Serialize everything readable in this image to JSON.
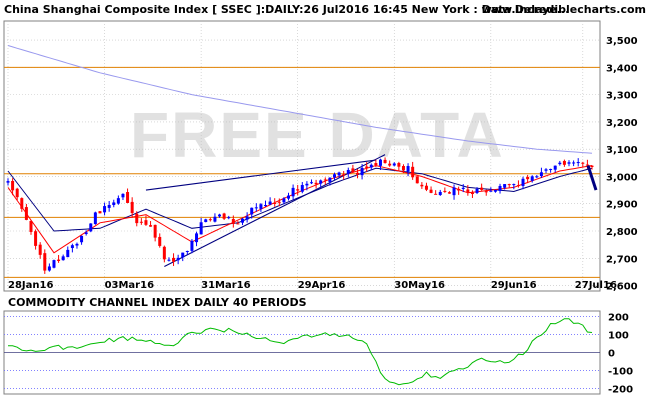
{
  "header": {
    "title": "China Shanghai Composite Index [ SSEC ]:DAILY:26 Jul2016 16:45 New York : Data Delaye...",
    "site": "www.incrediblecharts.com"
  },
  "watermark": "FREE DATA",
  "colors": {
    "price_up": "#0000ff",
    "price_down": "#ff0000",
    "ma_short": "#ff0000",
    "ma_medium": "#000080",
    "ma_long": "#9999ee",
    "support_resistance": "#e08000",
    "trendline": "#000080",
    "cci": "#00bb00",
    "cci_level": "#7070ff",
    "grid": "#c0c0c0",
    "panel_border": "#808080"
  },
  "chart_data": [
    {
      "type": "candlestick",
      "title": "China Shanghai Composite Index [ SSEC ]:DAILY:26 Jul2016 16:45 New York : Data Delaye...",
      "x_tick_labels": [
        "28Jan16",
        "03Mar16",
        "31Mar16",
        "29Apr16",
        "30May16",
        "29Jun16",
        "27Jul16"
      ],
      "y_tick_labels": [
        "2,600",
        "2,700",
        "2,800",
        "2,900",
        "3,000",
        "3,100",
        "3,200",
        "3,300",
        "3,400",
        "3,500"
      ],
      "ylim": [
        2580,
        3570
      ],
      "grid": true,
      "n_bars": 128,
      "horizontal_levels": [
        3400,
        3010,
        2850,
        2630
      ],
      "close_path": [
        [
          0,
          2980
        ],
        [
          3,
          2880
        ],
        [
          6,
          2755
        ],
        [
          8,
          2660
        ],
        [
          11,
          2700
        ],
        [
          14,
          2740
        ],
        [
          17,
          2790
        ],
        [
          19,
          2860
        ],
        [
          22,
          2900
        ],
        [
          25,
          2935
        ],
        [
          28,
          2840
        ],
        [
          31,
          2820
        ],
        [
          34,
          2700
        ],
        [
          36,
          2690
        ],
        [
          39,
          2735
        ],
        [
          42,
          2825
        ],
        [
          45,
          2860
        ],
        [
          47,
          2845
        ],
        [
          50,
          2830
        ],
        [
          53,
          2880
        ],
        [
          56,
          2905
        ],
        [
          59,
          2915
        ],
        [
          62,
          2950
        ],
        [
          64,
          2965
        ],
        [
          67,
          2980
        ],
        [
          70,
          3005
        ],
        [
          73,
          3010
        ],
        [
          75,
          3015
        ],
        [
          78,
          3025
        ],
        [
          81,
          3060
        ],
        [
          84,
          3040
        ],
        [
          87,
          3030
        ],
        [
          89,
          2980
        ],
        [
          92,
          2950
        ],
        [
          95,
          2935
        ],
        [
          98,
          2960
        ],
        [
          101,
          2940
        ],
        [
          103,
          2950
        ],
        [
          106,
          2960
        ],
        [
          109,
          2965
        ],
        [
          112,
          2980
        ],
        [
          114,
          2995
        ],
        [
          117,
          3015
        ],
        [
          120,
          3040
        ],
        [
          123,
          3050
        ],
        [
          125,
          3045
        ],
        [
          127,
          3040
        ]
      ],
      "series": [
        {
          "name": "",
          "kind": "moving-average-short",
          "values": [
            [
              0,
              2960
            ],
            [
              10,
              2720
            ],
            [
              20,
              2830
            ],
            [
              30,
              2860
            ],
            [
              40,
              2760
            ],
            [
              50,
              2840
            ],
            [
              60,
              2920
            ],
            [
              70,
              2990
            ],
            [
              80,
              3040
            ],
            [
              90,
              3000
            ],
            [
              100,
              2940
            ],
            [
              110,
              2960
            ],
            [
              120,
              3020
            ],
            [
              127,
              3040
            ]
          ]
        },
        {
          "name": "",
          "kind": "moving-average-medium",
          "values": [
            [
              0,
              3020
            ],
            [
              10,
              2800
            ],
            [
              20,
              2810
            ],
            [
              30,
              2880
            ],
            [
              40,
              2810
            ],
            [
              50,
              2830
            ],
            [
              60,
              2900
            ],
            [
              70,
              2970
            ],
            [
              80,
              3030
            ],
            [
              90,
              3010
            ],
            [
              100,
              2960
            ],
            [
              110,
              2945
            ],
            [
              120,
              3000
            ],
            [
              127,
              3030
            ]
          ]
        },
        {
          "name": "",
          "kind": "moving-average-long",
          "values": [
            [
              0,
              3480
            ],
            [
              20,
              3380
            ],
            [
              40,
              3300
            ],
            [
              60,
              3240
            ],
            [
              80,
              3180
            ],
            [
              100,
              3130
            ],
            [
              115,
              3100
            ],
            [
              127,
              3085
            ]
          ]
        }
      ],
      "trendlines": [
        {
          "from": [
            30,
            2950
          ],
          "to": [
            80,
            3060
          ]
        },
        {
          "from": [
            34,
            2670
          ],
          "to": [
            82,
            3080
          ]
        }
      ]
    },
    {
      "type": "line",
      "title": "COMMODITY CHANNEL INDEX DAILY 40 PERIODS",
      "y_tick_labels": [
        "200",
        "100",
        "0",
        "-100",
        "-200"
      ],
      "ylim": [
        -230,
        230
      ],
      "levels": [
        200,
        100,
        0,
        -100,
        -200
      ],
      "series": [
        {
          "name": "",
          "values": [
            [
              0,
              40
            ],
            [
              5,
              10
            ],
            [
              10,
              30
            ],
            [
              15,
              20
            ],
            [
              20,
              60
            ],
            [
              25,
              80
            ],
            [
              30,
              70
            ],
            [
              35,
              30
            ],
            [
              40,
              110
            ],
            [
              45,
              130
            ],
            [
              50,
              120
            ],
            [
              55,
              80
            ],
            [
              60,
              60
            ],
            [
              65,
              90
            ],
            [
              70,
              100
            ],
            [
              75,
              85
            ],
            [
              78,
              40
            ],
            [
              80,
              -60
            ],
            [
              82,
              -150
            ],
            [
              85,
              -180
            ],
            [
              88,
              -160
            ],
            [
              91,
              -120
            ],
            [
              94,
              -140
            ],
            [
              97,
              -100
            ],
            [
              100,
              -80
            ],
            [
              103,
              -40
            ],
            [
              106,
              -60
            ],
            [
              109,
              -50
            ],
            [
              112,
              0
            ],
            [
              115,
              80
            ],
            [
              118,
              150
            ],
            [
              121,
              190
            ],
            [
              124,
              160
            ],
            [
              126,
              120
            ],
            [
              127,
              110
            ]
          ]
        }
      ]
    }
  ]
}
